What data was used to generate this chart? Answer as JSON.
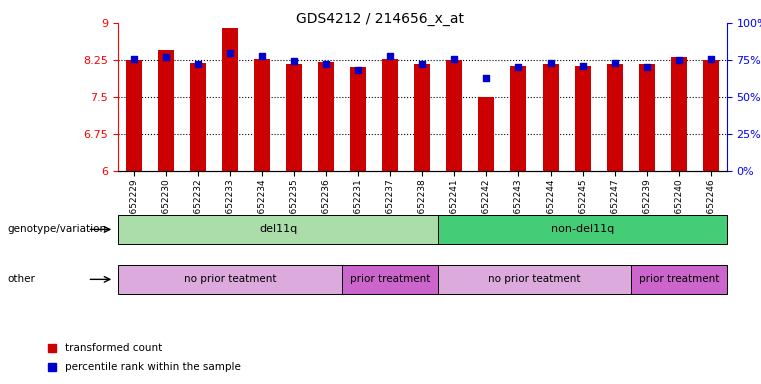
{
  "title": "GDS4212 / 214656_x_at",
  "samples": [
    "GSM652229",
    "GSM652230",
    "GSM652232",
    "GSM652233",
    "GSM652234",
    "GSM652235",
    "GSM652236",
    "GSM652231",
    "GSM652237",
    "GSM652238",
    "GSM652241",
    "GSM652242",
    "GSM652243",
    "GSM652244",
    "GSM652245",
    "GSM652247",
    "GSM652239",
    "GSM652240",
    "GSM652246"
  ],
  "bar_values": [
    8.25,
    8.45,
    8.18,
    8.9,
    8.28,
    8.17,
    8.2,
    8.1,
    8.28,
    8.17,
    8.25,
    7.5,
    8.13,
    8.17,
    8.13,
    8.17,
    8.17,
    8.32,
    8.25
  ],
  "percentile_values": [
    76,
    77,
    72,
    80,
    78,
    74,
    72,
    68,
    78,
    72,
    76,
    63,
    70,
    73,
    71,
    73,
    70,
    75,
    76
  ],
  "bar_color": "#cc0000",
  "percentile_color": "#0000cc",
  "ylim_left": [
    6,
    9
  ],
  "ylim_right": [
    0,
    100
  ],
  "yticks_left": [
    6,
    6.75,
    7.5,
    8.25,
    9
  ],
  "ytick_labels_left": [
    "6",
    "6.75",
    "7.5",
    "8.25",
    "9"
  ],
  "yticks_right": [
    0,
    25,
    50,
    75,
    100
  ],
  "ytick_labels_right": [
    "0%",
    "25%",
    "50%",
    "75%",
    "100%"
  ],
  "hlines": [
    6.75,
    7.5,
    8.25
  ],
  "groups": [
    {
      "label": "del11q",
      "start": 0,
      "end": 10,
      "color": "#aaddaa"
    },
    {
      "label": "non-del11q",
      "start": 10,
      "end": 19,
      "color": "#44cc77"
    }
  ],
  "subgroups": [
    {
      "label": "no prior teatment",
      "start": 0,
      "end": 7,
      "color": "#ddaadd"
    },
    {
      "label": "prior treatment",
      "start": 7,
      "end": 10,
      "color": "#cc66cc"
    },
    {
      "label": "no prior teatment",
      "start": 10,
      "end": 16,
      "color": "#ddaadd"
    },
    {
      "label": "prior treatment",
      "start": 16,
      "end": 19,
      "color": "#cc66cc"
    }
  ],
  "legend_items": [
    {
      "label": "transformed count",
      "color": "#cc0000"
    },
    {
      "label": "percentile rank within the sample",
      "color": "#0000cc"
    }
  ],
  "genotype_label": "genotype/variation",
  "other_label": "other"
}
